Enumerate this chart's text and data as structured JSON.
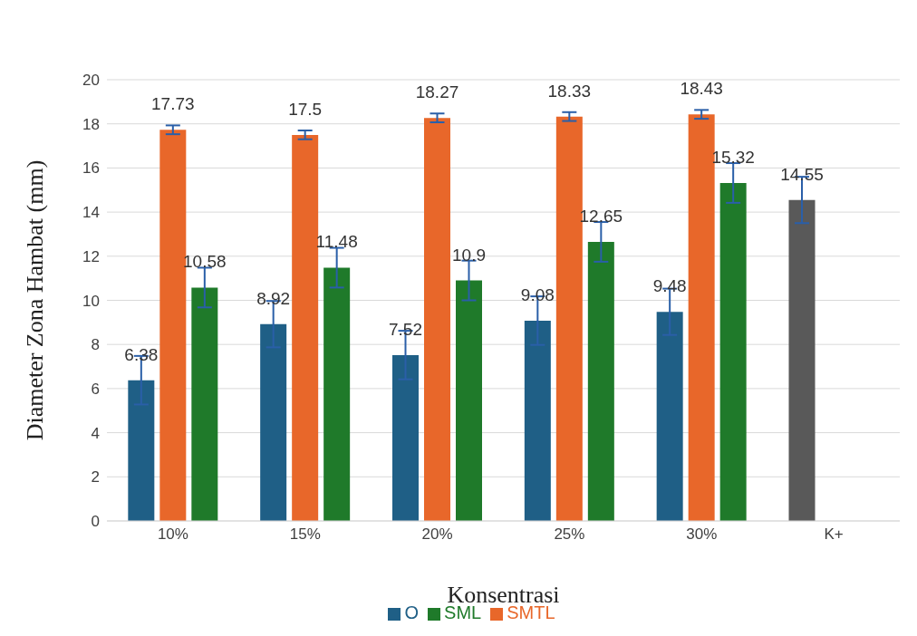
{
  "chart_data": {
    "type": "bar",
    "xlabel": "Konsentrasi",
    "ylabel": "Diameter Zona Hambat (mm)",
    "categories": [
      "10%",
      "15%",
      "20%",
      "25%",
      "30%",
      "K+"
    ],
    "series": [
      {
        "name": "O",
        "color": "#1f5f86",
        "colors": [
          "#1f5f86",
          "#1f5f86",
          "#1f5f86",
          "#1f5f86",
          "#1f5f86",
          "#595959"
        ],
        "values": [
          6.38,
          8.92,
          7.52,
          9.08,
          9.48,
          14.55
        ],
        "errors": [
          1.1,
          1.05,
          1.1,
          1.1,
          1.05,
          1.05
        ]
      },
      {
        "name": "SMTL",
        "color": "#e8672a",
        "values": [
          17.73,
          17.5,
          18.27,
          18.33,
          18.43,
          null
        ],
        "errors": [
          0.2,
          0.2,
          0.2,
          0.2,
          0.2,
          null
        ]
      },
      {
        "name": "SML",
        "color": "#1f7a2a",
        "values": [
          10.58,
          11.48,
          10.9,
          12.65,
          15.32,
          null
        ],
        "errors": [
          0.9,
          0.9,
          0.9,
          0.9,
          0.9,
          null
        ]
      }
    ],
    "ylim": [
      0,
      20
    ],
    "yticks": [
      0,
      2,
      4,
      6,
      8,
      10,
      12,
      14,
      16,
      18,
      20
    ],
    "grid": "y",
    "legend": "bottom",
    "data_labels": true
  }
}
